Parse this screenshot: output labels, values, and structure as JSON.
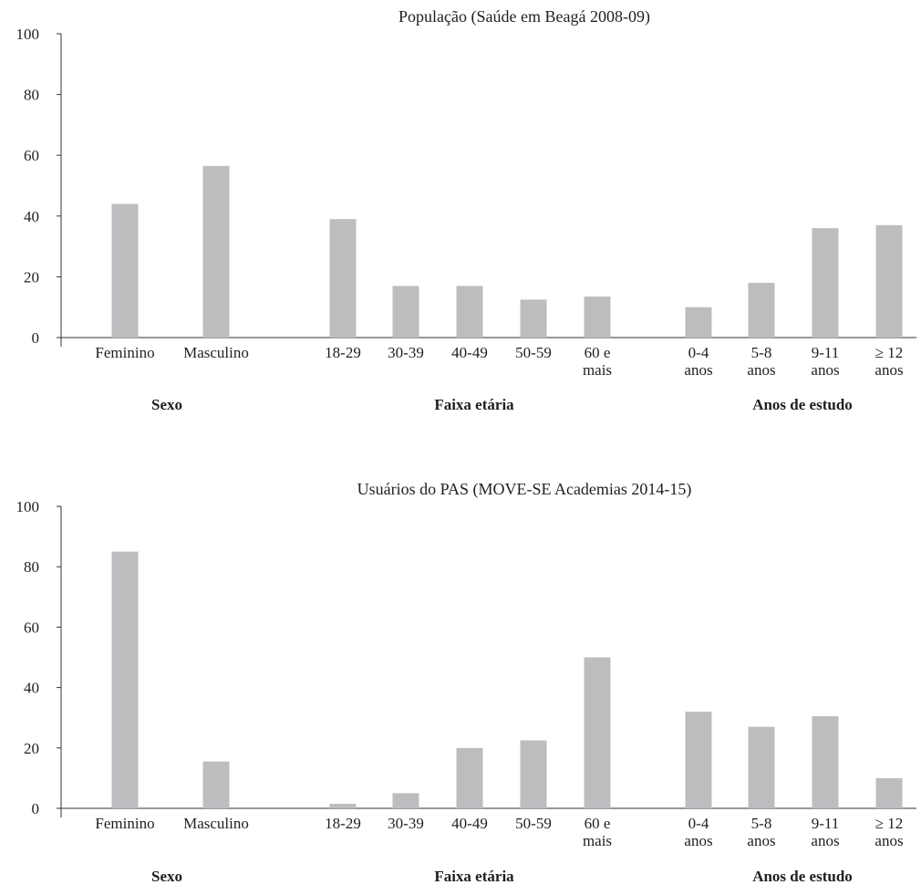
{
  "colors": {
    "bar": "#bdbdc0",
    "axis": "#333333",
    "text": "#1f1f1f"
  },
  "chart_data": [
    {
      "type": "bar",
      "title": "População (Saúde em Beagá 2008-09)",
      "xlabel": "",
      "ylabel": "",
      "ylim": [
        0,
        100
      ],
      "yticks": [
        "0",
        "20",
        "40",
        "60",
        "80",
        "100"
      ],
      "grid": false,
      "legend": "none",
      "groups": [
        "Sexo",
        "Faixa etária",
        "Anos de estudo"
      ],
      "categories": [
        [
          "Feminino"
        ],
        [
          "Masculino"
        ],
        [
          "18-29"
        ],
        [
          "30-39"
        ],
        [
          "40-49"
        ],
        [
          "50-59"
        ],
        [
          "60 e",
          "mais"
        ],
        [
          "0-4",
          "anos"
        ],
        [
          "5-8",
          "anos"
        ],
        [
          "9-11",
          "anos"
        ],
        [
          "≥ 12",
          "anos"
        ]
      ],
      "values": [
        44,
        56.5,
        39,
        17,
        17,
        12.5,
        13.5,
        10,
        18,
        36,
        37
      ]
    },
    {
      "type": "bar",
      "title": "Usuários do PAS (MOVE-SE Academias 2014-15)",
      "xlabel": "",
      "ylabel": "",
      "ylim": [
        0,
        100
      ],
      "yticks": [
        "0",
        "20",
        "40",
        "60",
        "80",
        "100"
      ],
      "grid": false,
      "legend": "none",
      "groups": [
        "Sexo",
        "Faixa etária",
        "Anos de estudo"
      ],
      "categories": [
        [
          "Feminino"
        ],
        [
          "Masculino"
        ],
        [
          "18-29"
        ],
        [
          "30-39"
        ],
        [
          "40-49"
        ],
        [
          "50-59"
        ],
        [
          "60 e",
          "mais"
        ],
        [
          "0-4",
          "anos"
        ],
        [
          "5-8",
          "anos"
        ],
        [
          "9-11",
          "anos"
        ],
        [
          "≥ 12",
          "anos"
        ]
      ],
      "values": [
        85,
        15.5,
        1.5,
        5,
        20,
        22.5,
        50,
        32,
        27,
        30.5,
        10
      ]
    }
  ]
}
